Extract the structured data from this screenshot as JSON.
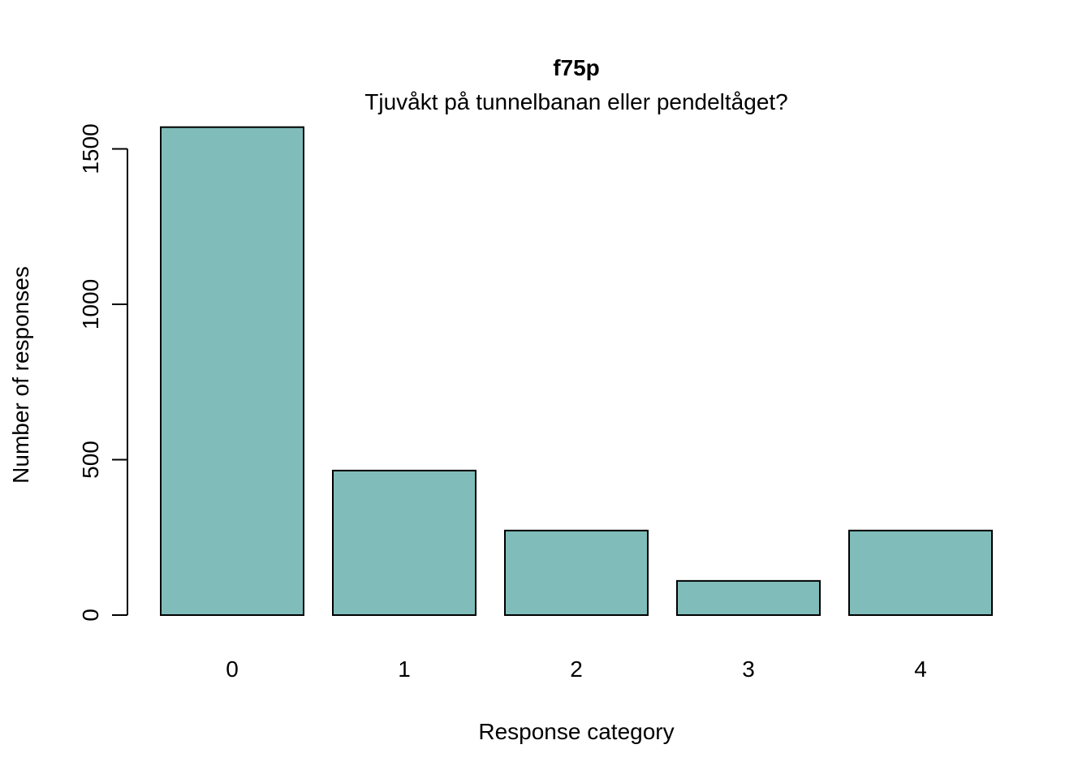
{
  "chart_data": {
    "type": "bar",
    "title": "f75p",
    "subtitle": "Tjuvåkt på tunnelbanan eller pendeltåget?",
    "xlabel": "Response category",
    "ylabel": "Number of responses",
    "categories": [
      "0",
      "1",
      "2",
      "3",
      "4"
    ],
    "values": [
      1570,
      465,
      272,
      110,
      272
    ],
    "ylim": [
      0,
      1500
    ],
    "yticks": [
      "0",
      "500",
      "1000",
      "1500"
    ],
    "grid": false,
    "legend": "none",
    "colors": {
      "bar_fill": "#80BDBA",
      "bar_stroke": "#000000",
      "axis": "#000000",
      "text": "#000000"
    }
  }
}
